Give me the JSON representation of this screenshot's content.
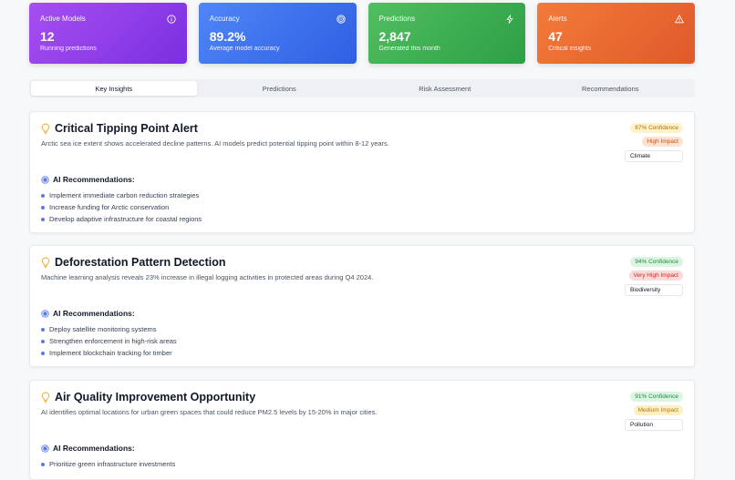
{
  "stats": [
    {
      "title": "Active Models",
      "value": "12",
      "sub": "Running predictions",
      "icon": "info-icon"
    },
    {
      "title": "Accuracy",
      "value": "89.2%",
      "sub": "Average model accuracy",
      "icon": "target-icon"
    },
    {
      "title": "Predictions",
      "value": "2,847",
      "sub": "Generated this month",
      "icon": "lightning-icon"
    },
    {
      "title": "Alerts",
      "value": "47",
      "sub": "Critical insights",
      "icon": "warning-icon"
    }
  ],
  "tabs": [
    {
      "label": "Key Insights",
      "active": true
    },
    {
      "label": "Predictions",
      "active": false
    },
    {
      "label": "Risk Assessment",
      "active": false
    },
    {
      "label": "Recommendations",
      "active": false
    }
  ],
  "insights": [
    {
      "title": "Critical Tipping Point Alert",
      "description": "Arctic sea ice extent shows accelerated decline patterns. AI models predict potential tipping point within 8-12 years.",
      "confidence": "87% Confidence",
      "impact": "High Impact",
      "category": "Climate",
      "rec_title": "AI Recommendations:",
      "recommendations": [
        "Implement immediate carbon reduction strategies",
        "Increase funding for Arctic conservation",
        "Develop adaptive infrastructure for coastal regions"
      ]
    },
    {
      "title": "Deforestation Pattern Detection",
      "description": "Machine learning analysis reveals 23% increase in illegal logging activities in protected areas during Q4 2024.",
      "confidence": "94% Confidence",
      "impact": "Very High Impact",
      "category": "Biodiversity",
      "rec_title": "AI Recommendations:",
      "recommendations": [
        "Deploy satellite monitoring systems",
        "Strengthen enforcement in high-risk areas",
        "Implement blockchain tracking for timber"
      ]
    },
    {
      "title": "Air Quality Improvement Opportunity",
      "description": "AI identifies optimal locations for urban green spaces that could reduce PM2.5 levels by 15-20% in major cities.",
      "confidence": "91% Confidence",
      "impact": "Medium Impact",
      "category": "Pollution",
      "rec_title": "AI Recommendations:",
      "recommendations": [
        "Prioritize green infrastructure investments"
      ]
    }
  ],
  "colors": {
    "purple": "#8b3ce8",
    "blue": "#3b6ff0",
    "green": "#3aab50",
    "orange": "#e8672f",
    "bullet": "#5a79e6"
  }
}
